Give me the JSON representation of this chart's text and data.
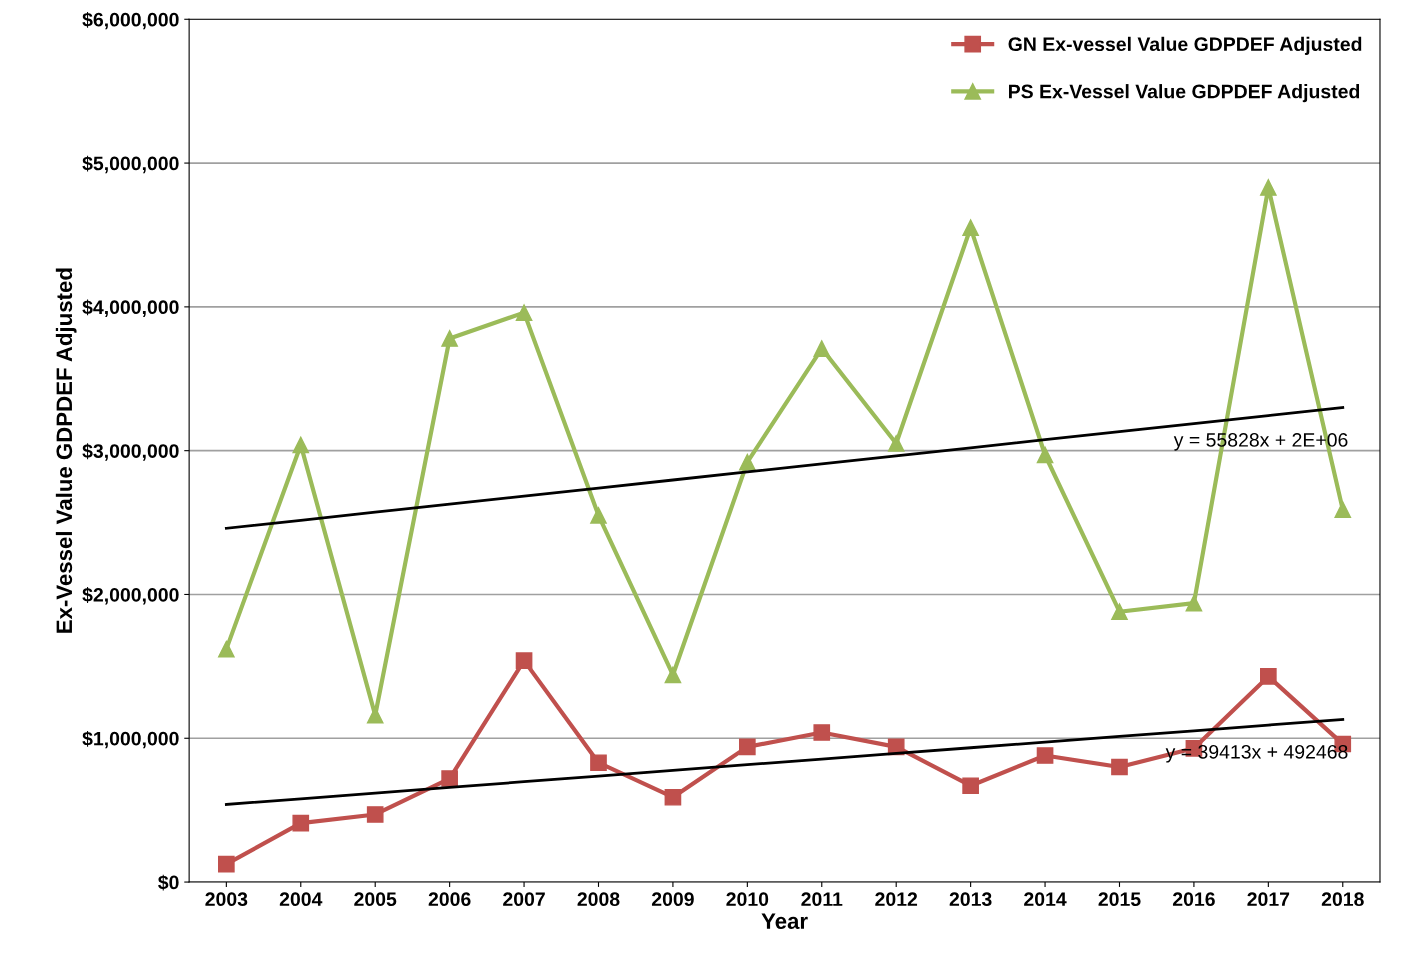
{
  "chart_data": {
    "type": "line",
    "xlabel": "Year",
    "ylabel": "Ex-Vessel Value GDPDEF Adjusted",
    "x": [
      2003,
      2004,
      2005,
      2006,
      2007,
      2008,
      2009,
      2010,
      2011,
      2012,
      2013,
      2014,
      2015,
      2016,
      2017,
      2018
    ],
    "xlim": [
      2002.5,
      2018.5
    ],
    "xticks": [
      2003,
      2004,
      2005,
      2006,
      2007,
      2008,
      2009,
      2010,
      2011,
      2012,
      2013,
      2014,
      2015,
      2016,
      2017,
      2018
    ],
    "series": [
      {
        "name": "GN Ex-vessel Value GDPDEF Adjusted",
        "color": "#c0504d",
        "marker": "square",
        "values": [
          125000,
          410000,
          470000,
          720000,
          1540000,
          830000,
          590000,
          940000,
          1040000,
          940000,
          670000,
          880000,
          800000,
          930000,
          1430000,
          960000
        ]
      },
      {
        "name": "PS Ex-Vessel Value GDPDEF Adjusted",
        "color": "#9bbb59",
        "marker": "triangle",
        "values": [
          1620000,
          3040000,
          1160000,
          3780000,
          3960000,
          2550000,
          1440000,
          2920000,
          3710000,
          3050000,
          4550000,
          2970000,
          1880000,
          1940000,
          4830000,
          2590000
        ]
      },
      {
        "type": "line",
        "color": "#000000",
        "marker": "none",
        "values": [
          2460000,
          2516000,
          2572000,
          2628000,
          2684000,
          2740000,
          2796000,
          2852000,
          2908000,
          2964000,
          3020000,
          3076000,
          3132000,
          3188000,
          3244000,
          3300000
        ]
      },
      {
        "type": "line",
        "color": "#000000",
        "marker": "none",
        "values": [
          540000,
          579000,
          619000,
          658000,
          698000,
          737000,
          776000,
          816000,
          855000,
          895000,
          934000,
          973000,
          1013000,
          1052000,
          1092000,
          1131000
        ]
      }
    ],
    "ylim": [
      0,
      6000000
    ],
    "yticks": [
      {
        "value": 0,
        "label": "$0"
      },
      {
        "value": 1000000,
        "label": "$1,000,000"
      },
      {
        "value": 2000000,
        "label": "$2,000,000"
      },
      {
        "value": 3000000,
        "label": "$3,000,000"
      },
      {
        "value": 4000000,
        "label": "$4,000,000"
      },
      {
        "value": 5000000,
        "label": "$5,000,000"
      },
      {
        "value": 6000000,
        "label": "$6,000,000"
      }
    ],
    "annotations": [
      {
        "text": "y = 55828x + 2E+06",
        "x": 2018,
        "y": 3300000
      },
      {
        "text": "y = 39413x + 492468",
        "x": 2018,
        "y": 1131000
      }
    ],
    "grid": "y",
    "legend": "top right"
  }
}
